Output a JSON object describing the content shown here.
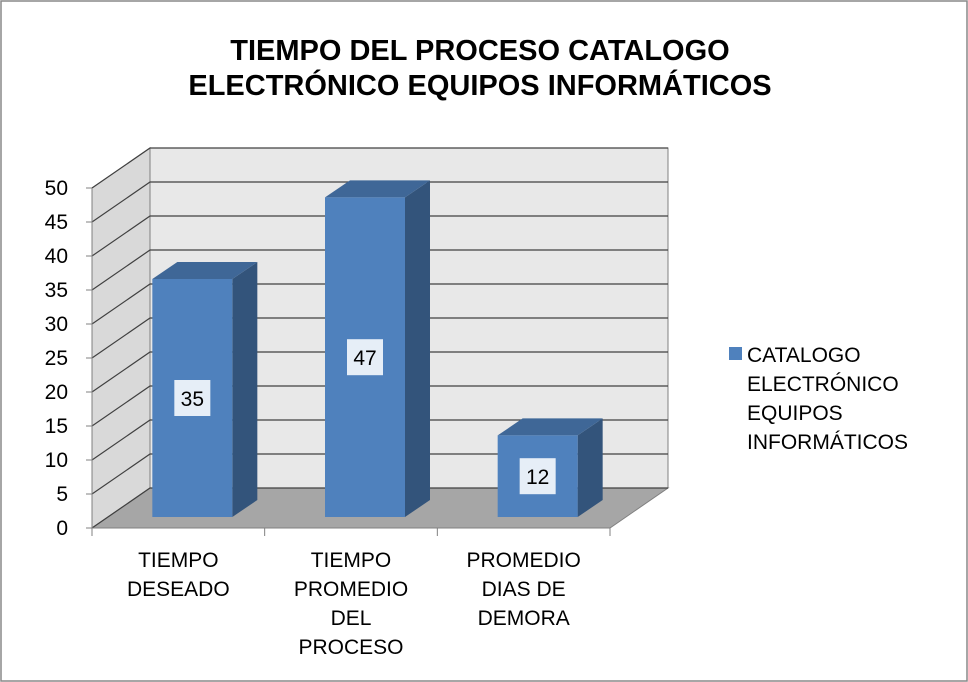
{
  "chart_data": {
    "type": "bar3d",
    "title": "TIEMPO DEL PROCESO CATALOGO\nELECTRÓNICO EQUIPOS INFORMÁTICOS",
    "categories": [
      "TIEMPO\nDESEADO",
      "TIEMPO\nPROMEDIO\nDEL\nPROCESO",
      "PROMEDIO\nDIAS DE\nDEMORA"
    ],
    "series": [
      {
        "name": "CATALOGO\nELECTRÓNICO\nEQUIPOS\nINFORMÁTICOS",
        "color": "#4f81bd",
        "values": [
          35,
          47,
          12
        ]
      }
    ],
    "ylim": [
      0,
      50
    ],
    "yticks": [
      0,
      5,
      10,
      15,
      20,
      25,
      30,
      35,
      40,
      45,
      50
    ],
    "grid": true,
    "legend": "right"
  }
}
